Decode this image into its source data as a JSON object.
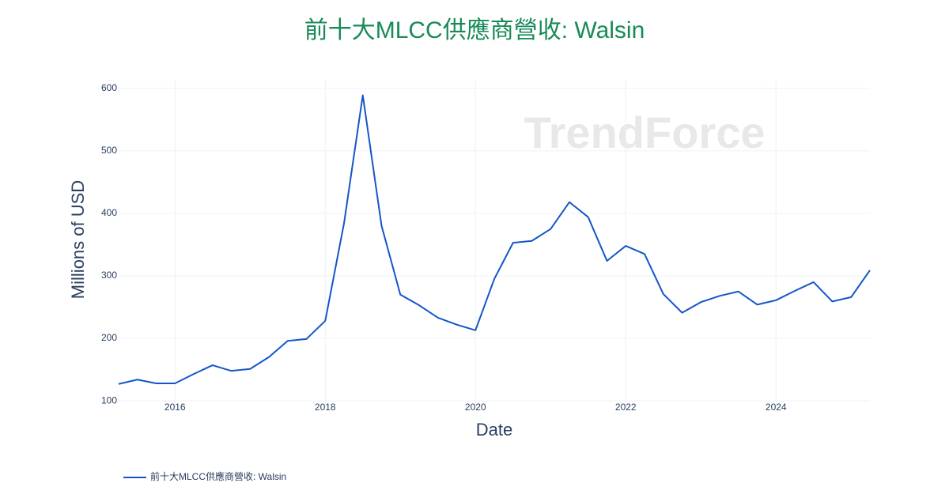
{
  "chart_data": {
    "type": "line",
    "title": "前十大MLCC供應商營收: Walsin",
    "watermark": "TrendForce",
    "x_label": "Date",
    "y_label": "Millions of USD",
    "x": [
      2015.25,
      2015.5,
      2015.75,
      2016,
      2016.25,
      2016.5,
      2016.75,
      2017,
      2017.25,
      2017.5,
      2017.75,
      2018,
      2018.25,
      2018.5,
      2018.75,
      2019,
      2019.25,
      2019.5,
      2019.75,
      2020,
      2020.25,
      2020.5,
      2020.75,
      2021,
      2021.25,
      2021.5,
      2021.75,
      2022,
      2022.25,
      2022.5,
      2022.75,
      2023,
      2023.25,
      2023.5,
      2023.75,
      2024,
      2024.25,
      2024.5,
      2024.75,
      2025,
      2025.25
    ],
    "series": [
      {
        "name": "前十大MLCC供應商營收: Walsin",
        "color": "#1456c8",
        "values": [
          127,
          134,
          128,
          128,
          143,
          157,
          148,
          151,
          170,
          196,
          199,
          228,
          384,
          589,
          380,
          270,
          253,
          233,
          222,
          213,
          295,
          353,
          356,
          375,
          418,
          394,
          324,
          348,
          335,
          271,
          241,
          258,
          268,
          275,
          254,
          261,
          276,
          290,
          259,
          266,
          309
        ]
      }
    ],
    "xlim": [
      2015.25,
      2025.25
    ],
    "xticks": [
      2016,
      2018,
      2020,
      2022,
      2024
    ],
    "ylim": [
      90,
      615
    ],
    "yticks": [
      100,
      200,
      300,
      400,
      500,
      600
    ],
    "grid": true
  }
}
